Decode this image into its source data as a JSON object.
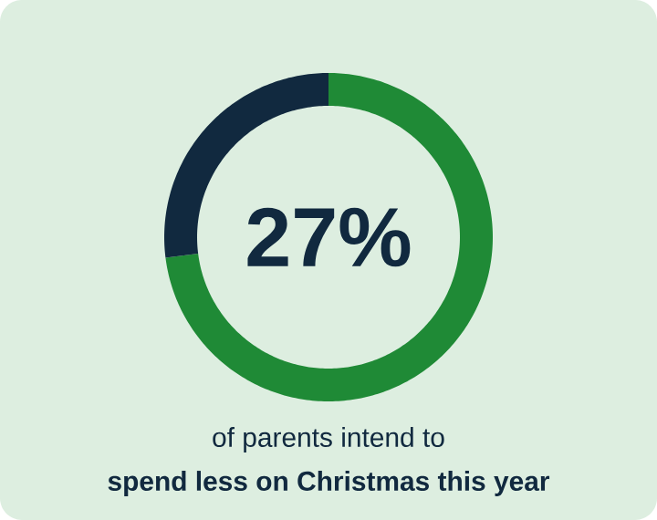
{
  "chart_data": {
    "type": "donut",
    "categories": [
      null,
      null
    ],
    "values": [
      73,
      27
    ],
    "colors": [
      "#1f8a36",
      "#11293f"
    ],
    "annotations": [
      "27%",
      "of parents intend to",
      "**spend less on Christmas this year**"
    ]
  }
}
